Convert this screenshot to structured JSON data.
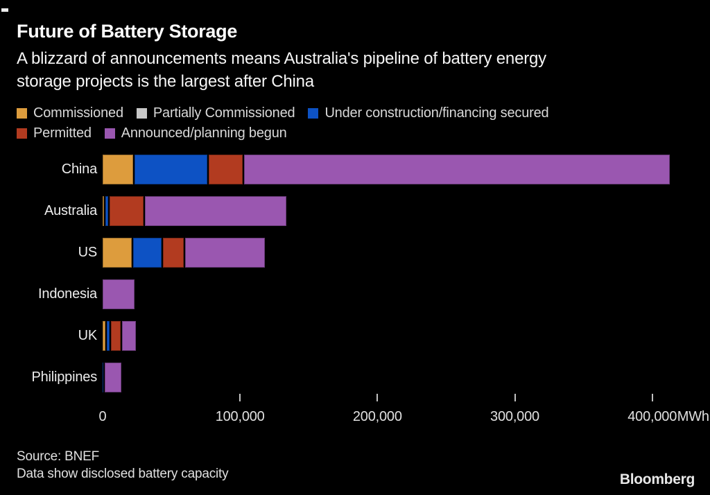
{
  "title": "Future of Battery Storage",
  "subtitle_lines": [
    "A blizzard of announcements means Australia's pipeline of battery energy",
    "storage projects is the largest after China"
  ],
  "colors": {
    "background": "#000000",
    "commissioned": "#DD9C3D",
    "partially_commissioned": "#C8C8C8",
    "under_construction": "#0D52C4",
    "permitted": "#B23B20",
    "announced": "#9A57B0",
    "tick": "#C2C2C2"
  },
  "chart_data": {
    "type": "bar",
    "orientation": "horizontal",
    "stacked": true,
    "unit": "MWh",
    "title": "Future of Battery Storage",
    "categories": [
      "China",
      "Australia",
      "US",
      "Indonesia",
      "UK",
      "Philippines"
    ],
    "series": [
      {
        "name": "Commissioned",
        "color": "#DD9C3D",
        "values": [
          22000,
          800,
          21000,
          0,
          2000,
          0
        ]
      },
      {
        "name": "Partially Commissioned",
        "color": "#C8C8C8",
        "values": [
          0,
          0,
          0,
          0,
          0,
          0
        ]
      },
      {
        "name": "Under construction/financing secured",
        "color": "#0D52C4",
        "values": [
          53000,
          2000,
          21000,
          0,
          2000,
          500
        ]
      },
      {
        "name": "Permitted",
        "color": "#B23B20",
        "values": [
          25000,
          25000,
          15000,
          0,
          7000,
          0
        ]
      },
      {
        "name": "Announced/planning begun",
        "color": "#9A57B0",
        "values": [
          310000,
          103000,
          58000,
          23000,
          10000,
          12000
        ]
      }
    ],
    "xlim": [
      0,
      437000
    ],
    "ticks": [
      {
        "value": 0,
        "label": "0"
      },
      {
        "value": 100000,
        "label": "100,000"
      },
      {
        "value": 200000,
        "label": "200,000"
      },
      {
        "value": 300000,
        "label": "300,000"
      },
      {
        "value": 400000,
        "label": "400,000"
      }
    ],
    "axis_unit_label": "MWh",
    "grid": false,
    "legend_position": "top"
  },
  "footer": {
    "source": "Source: BNEF",
    "note": "Data show disclosed battery capacity",
    "brand": "Bloomberg"
  }
}
